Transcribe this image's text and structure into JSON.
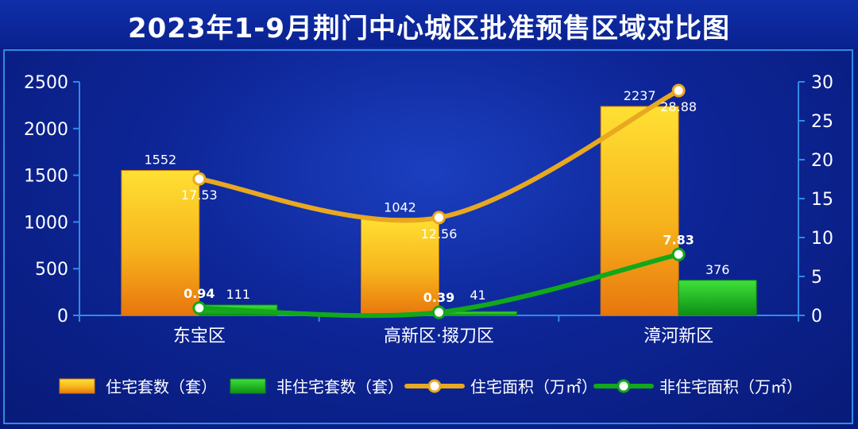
{
  "title": "2023年1-9月荆门中心城区批准预售区域对比图",
  "chart_data": {
    "type": "bar",
    "categories": [
      "东宝区",
      "高新区·掇刀区",
      "漳河新区"
    ],
    "series": [
      {
        "name": "住宅套数（套）",
        "kind": "bar",
        "axis": "left",
        "color": "#f0a010",
        "values": [
          1552,
          1042,
          2237
        ]
      },
      {
        "name": "非住宅套数（套）",
        "kind": "bar",
        "axis": "left",
        "color": "#18b818",
        "values": [
          111,
          41,
          376
        ]
      },
      {
        "name": "住宅面积（万㎡）",
        "kind": "line",
        "axis": "right",
        "color": "#e8a820",
        "values": [
          17.53,
          12.56,
          28.88
        ]
      },
      {
        "name": "非住宅面积（万㎡）",
        "kind": "line",
        "axis": "right",
        "color": "#11a81a",
        "values": [
          0.94,
          0.39,
          7.83
        ]
      }
    ],
    "y_left": {
      "min": 0,
      "max": 2500,
      "ticks": [
        0,
        500,
        1000,
        1500,
        2000,
        2500
      ]
    },
    "y_right": {
      "min": 0,
      "max": 30,
      "ticks": [
        0,
        5,
        10,
        15,
        20,
        25,
        30
      ]
    },
    "legend_position": "bottom",
    "grid": false
  }
}
